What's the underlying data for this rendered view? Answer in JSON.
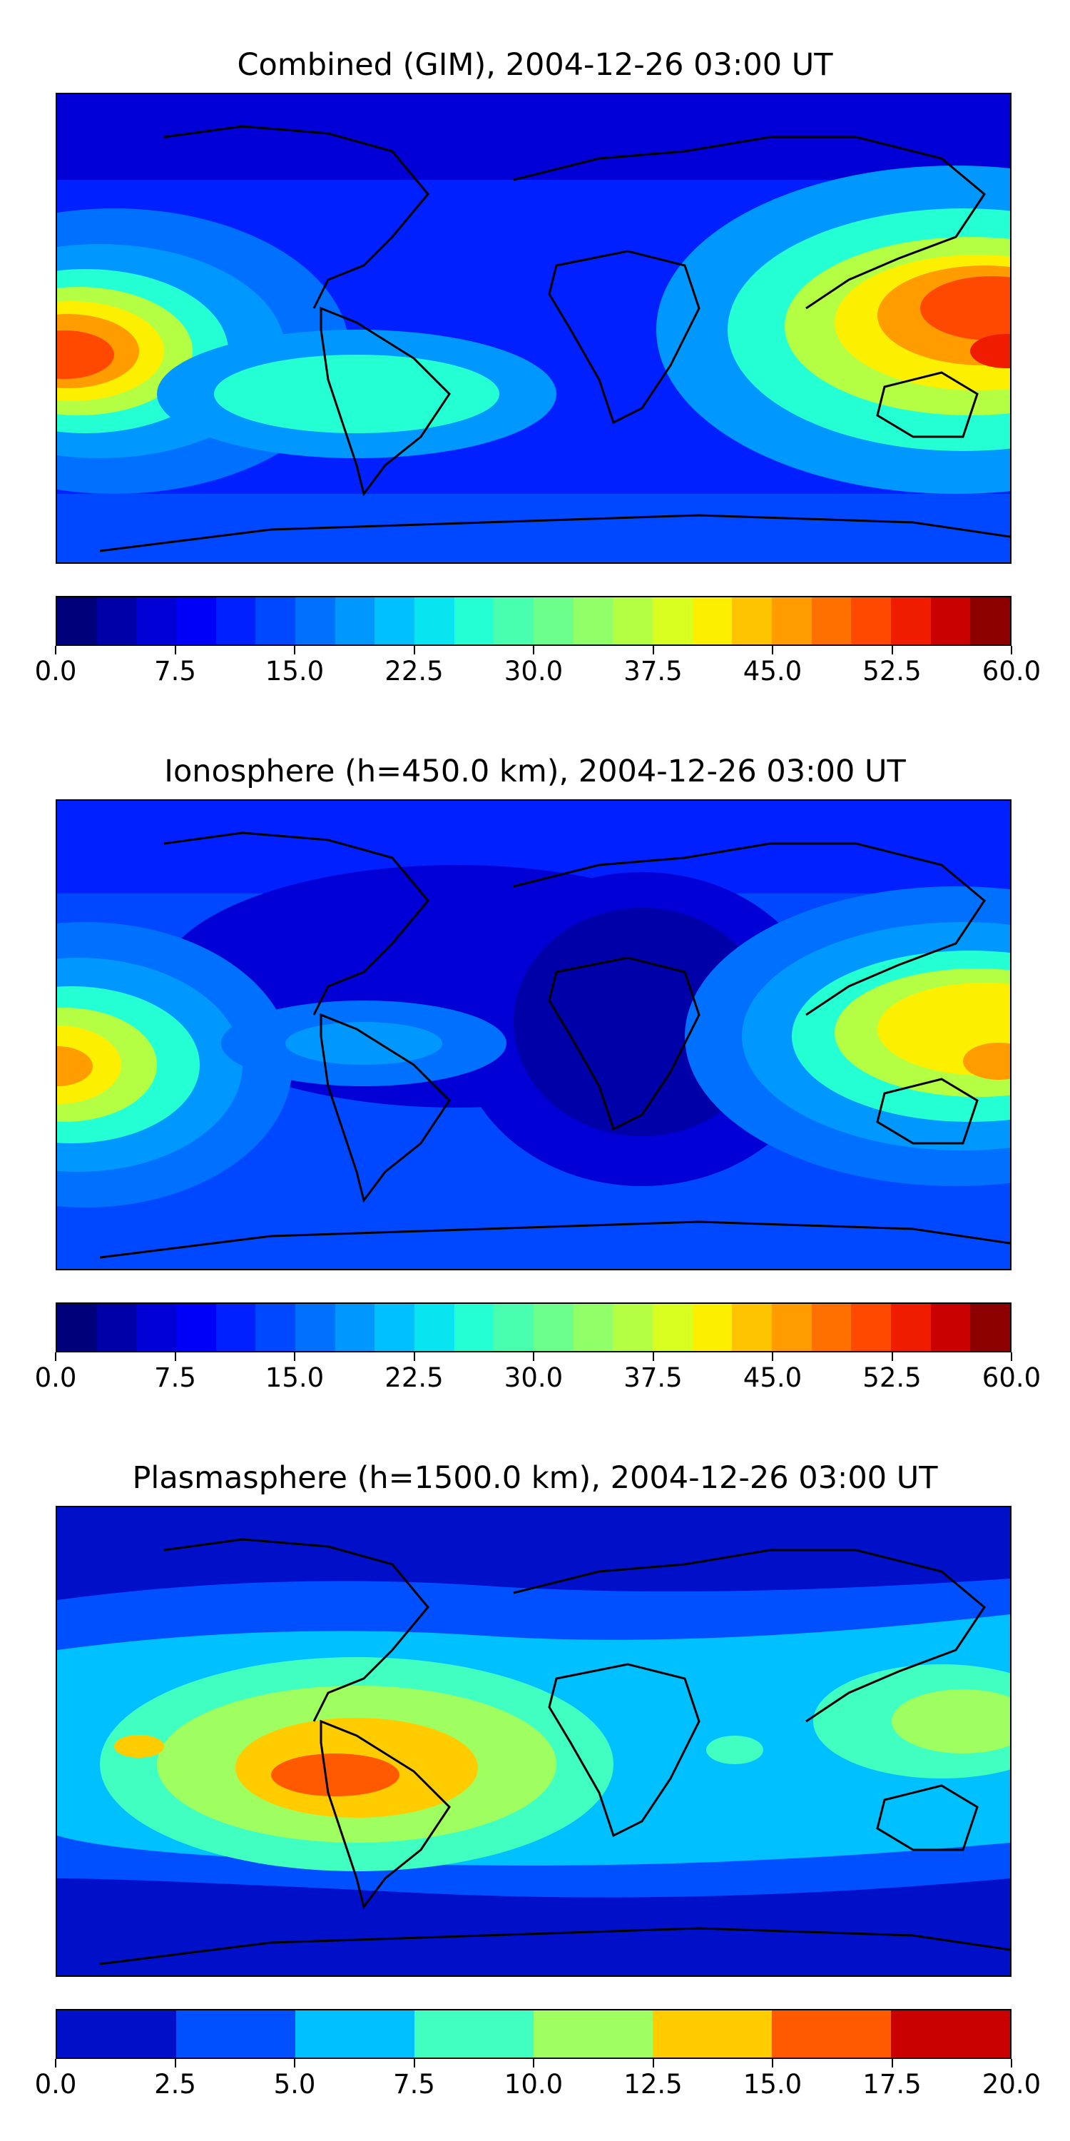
{
  "panels": [
    {
      "title": "Combined (GIM), 2004-12-26 03:00 UT",
      "quantity": "combined",
      "colorbar": {
        "min": 0.0,
        "max": 60.0,
        "levels": 24,
        "tick_labels": [
          "0.0",
          "7.5",
          "15.0",
          "22.5",
          "30.0",
          "37.5",
          "45.0",
          "52.5",
          "60.0"
        ],
        "colors": [
          "#00007a",
          "#0000a8",
          "#0000d6",
          "#0000f8",
          "#0020ff",
          "#0048ff",
          "#0070ff",
          "#0098ff",
          "#00c0ff",
          "#08e4f0",
          "#24ffd4",
          "#48ffb0",
          "#6cff8c",
          "#90ff68",
          "#b4ff44",
          "#d8ff20",
          "#fcf000",
          "#ffc400",
          "#ff9c00",
          "#ff7000",
          "#ff4800",
          "#f01c00",
          "#c80000",
          "#8c0000"
        ]
      }
    },
    {
      "title": "Ionosphere  (h=450.0 km), 2004-12-26 03:00 UT",
      "quantity": "ionosphere",
      "colorbar": {
        "min": 0.0,
        "max": 60.0,
        "levels": 24,
        "tick_labels": [
          "0.0",
          "7.5",
          "15.0",
          "22.5",
          "30.0",
          "37.5",
          "45.0",
          "52.5",
          "60.0"
        ],
        "colors": [
          "#00007a",
          "#0000a8",
          "#0000d6",
          "#0000f8",
          "#0020ff",
          "#0048ff",
          "#0070ff",
          "#0098ff",
          "#00c0ff",
          "#08e4f0",
          "#24ffd4",
          "#48ffb0",
          "#6cff8c",
          "#90ff68",
          "#b4ff44",
          "#d8ff20",
          "#fcf000",
          "#ffc400",
          "#ff9c00",
          "#ff7000",
          "#ff4800",
          "#f01c00",
          "#c80000",
          "#8c0000"
        ]
      }
    },
    {
      "title": "Plasmasphere (h=1500.0 km), 2004-12-26 03:00 UT",
      "quantity": "plasmasphere",
      "colorbar": {
        "min": 0.0,
        "max": 20.0,
        "levels": 8,
        "tick_labels": [
          "0.0",
          "2.5",
          "5.0",
          "7.5",
          "10.0",
          "12.5",
          "15.0",
          "17.5",
          "20.0"
        ],
        "colors": [
          "#0010c8",
          "#0050ff",
          "#00c0ff",
          "#40ffc0",
          "#a0ff60",
          "#ffcc00",
          "#ff5a00",
          "#c80000"
        ]
      }
    }
  ]
}
